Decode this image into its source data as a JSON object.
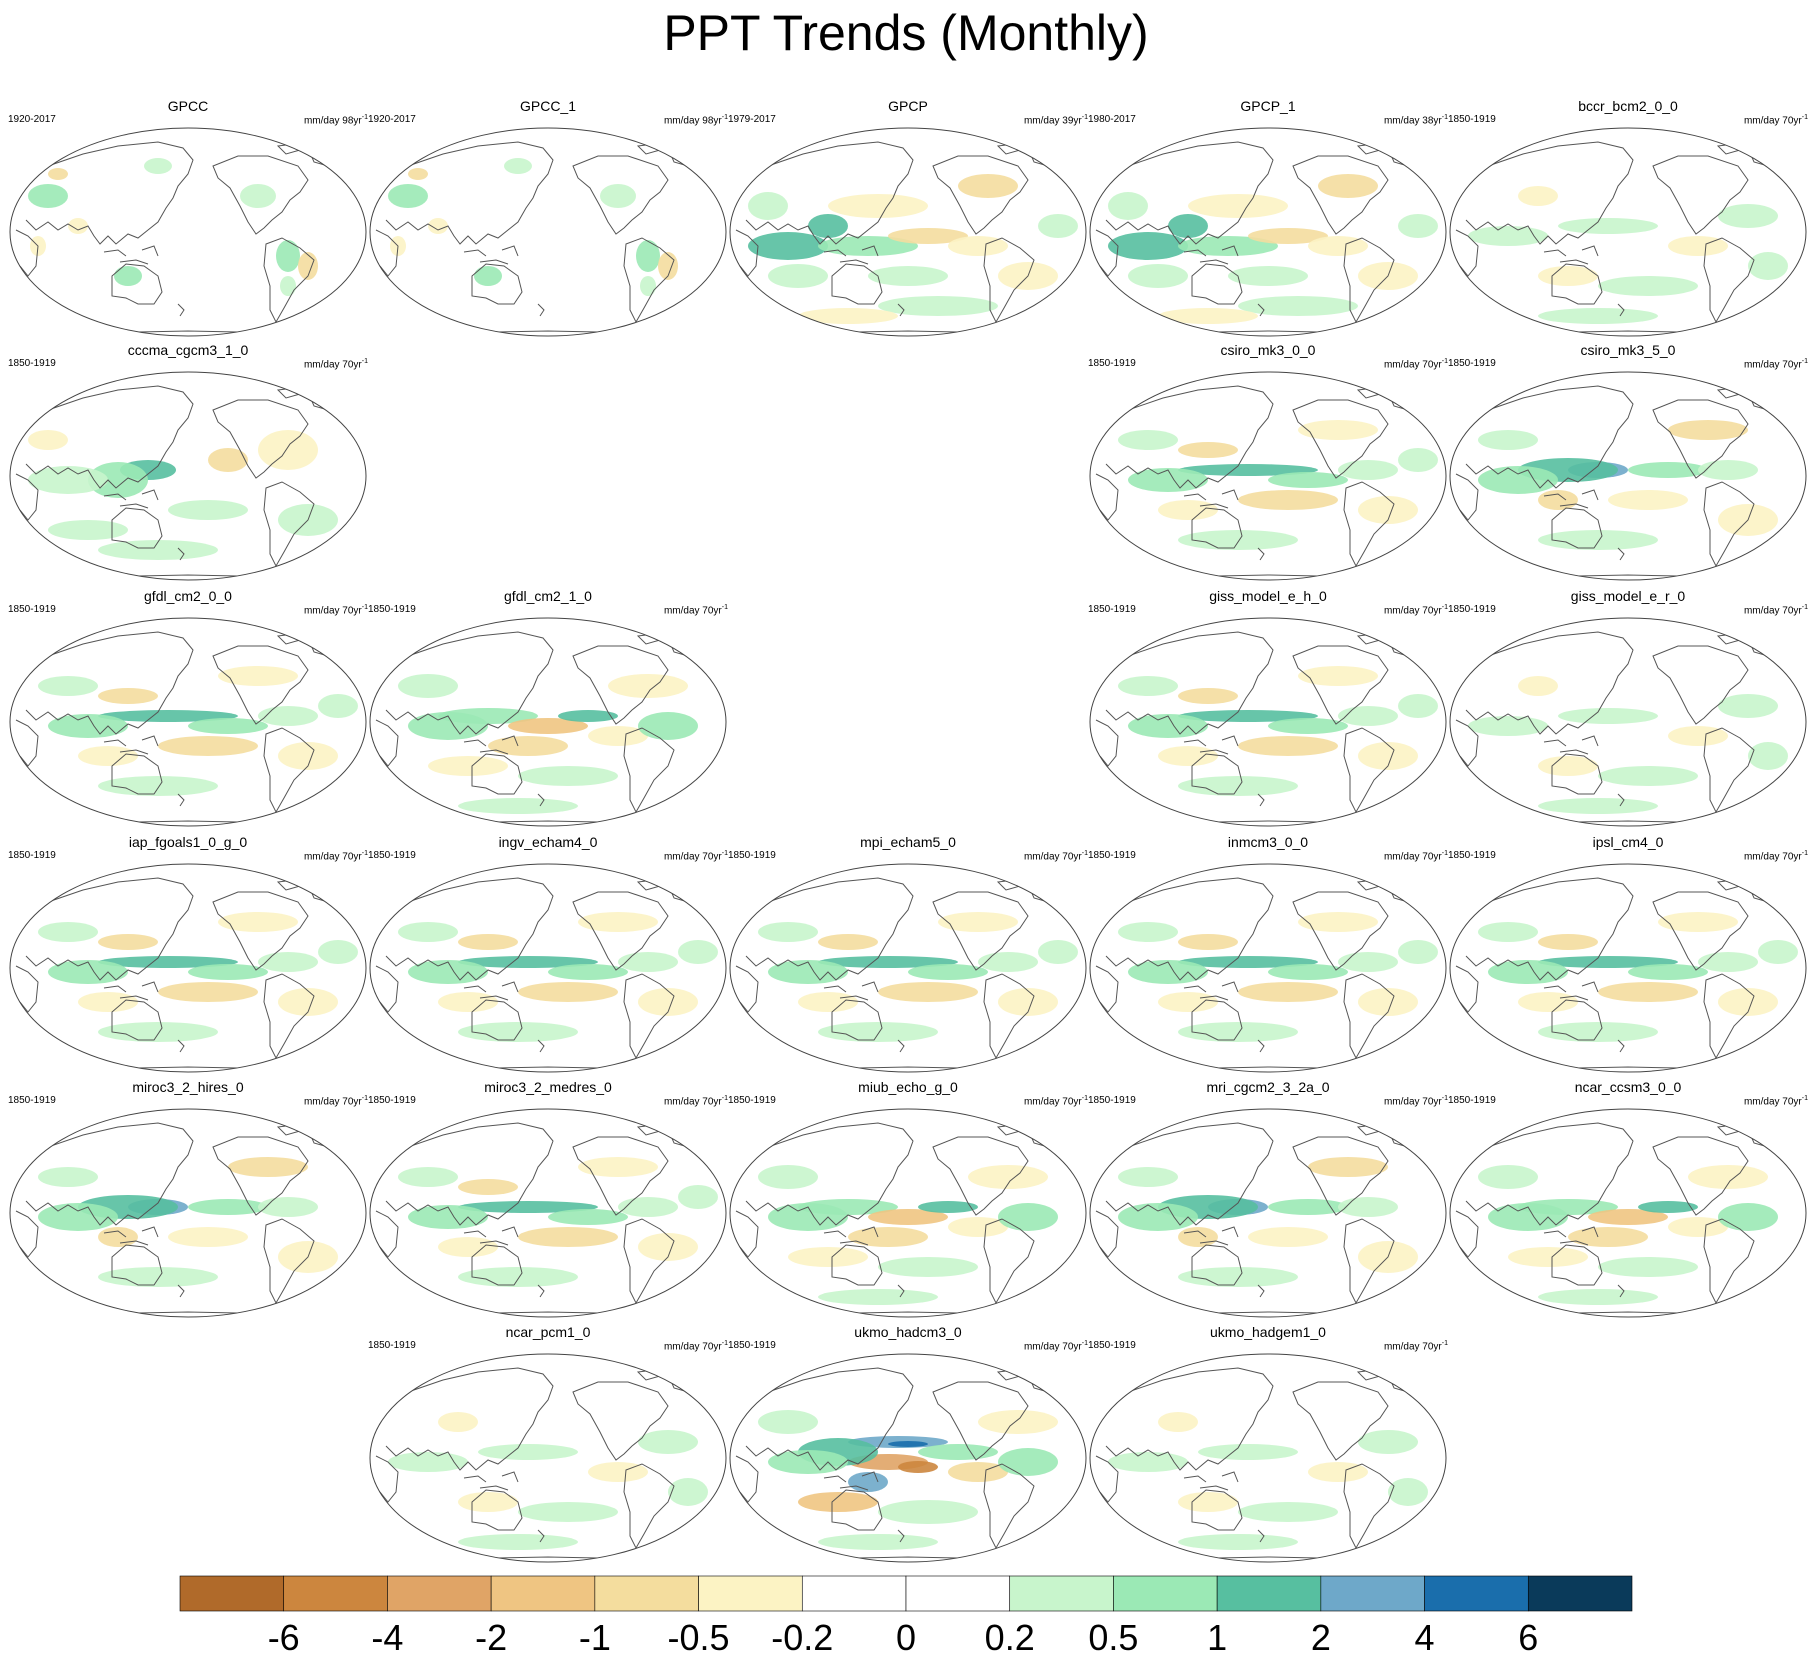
{
  "title": "PPT Trends (Monthly)",
  "colors": {
    "coastline": "#555555",
    "frame": "#444444",
    "land_bg": "#ffffff"
  },
  "chart_data": {
    "type": "heatmap",
    "title": "PPT Trends (Monthly)",
    "variable": "Precipitation trend (mm/day per period)",
    "projection": "Robinson, Pacific-centered",
    "colorbar": {
      "levels": [
        "-6",
        "-4",
        "-2",
        "-1",
        "-0.5",
        "-0.2",
        "0",
        "0.2",
        "0.5",
        "1",
        "2",
        "4",
        "6"
      ],
      "colors": [
        "#b06a2a",
        "#cc863e",
        "#e0a466",
        "#efc582",
        "#f4dd9e",
        "#fcf3c4",
        "#ffffff",
        "#ffffff",
        "#c8f5cc",
        "#9be9b5",
        "#57bfa0",
        "#6ea8c9",
        "#1a6eac",
        "#0a3a5a"
      ]
    },
    "panels": [
      {
        "name": "GPCC",
        "period": "1920-2017",
        "units": "mm/day 98yr",
        "exp": "-1",
        "pattern": "obs_land"
      },
      {
        "name": "GPCC_1",
        "period": "1920-2017",
        "units": "mm/day 98yr",
        "exp": "-1",
        "pattern": "obs_land"
      },
      {
        "name": "GPCP",
        "period": "1979-2017",
        "units": "mm/day 39yr",
        "exp": "-1",
        "pattern": "gpcp"
      },
      {
        "name": "GPCP_1",
        "period": "1980-2017",
        "units": "mm/day 38yr",
        "exp": "-1",
        "pattern": "gpcp"
      },
      {
        "name": "bccr_bcm2_0_0",
        "period": "1850-1919",
        "units": "mm/day 70yr",
        "exp": "-1",
        "pattern": "weak"
      },
      {
        "name": "cccma_cgcm3_1_0",
        "period": "1850-1919",
        "units": "mm/day 70yr",
        "exp": "-1",
        "pattern": "wpac"
      },
      {
        "name": "csiro_mk3_0_0",
        "period": "1850-1919",
        "units": "mm/day 70yr",
        "exp": "-1",
        "pattern": "itcz"
      },
      {
        "name": "csiro_mk3_5_0",
        "period": "1850-1919",
        "units": "mm/day 70yr",
        "exp": "-1",
        "pattern": "wpac_blue"
      },
      {
        "name": "gfdl_cm2_0_0",
        "period": "1850-1919",
        "units": "mm/day 70yr",
        "exp": "-1",
        "pattern": "itcz"
      },
      {
        "name": "gfdl_cm2_1_0",
        "period": "1850-1919",
        "units": "mm/day 70yr",
        "exp": "-1",
        "pattern": "mixed"
      },
      {
        "name": "giss_model_e_h_0",
        "period": "1850-1919",
        "units": "mm/day 70yr",
        "exp": "-1",
        "pattern": "itcz"
      },
      {
        "name": "giss_model_e_r_0",
        "period": "1850-1919",
        "units": "mm/day 70yr",
        "exp": "-1",
        "pattern": "weak"
      },
      {
        "name": "iap_fgoals1_0_g_0",
        "period": "1850-1919",
        "units": "mm/day 70yr",
        "exp": "-1",
        "pattern": "itcz"
      },
      {
        "name": "ingv_echam4_0",
        "period": "1850-1919",
        "units": "mm/day 70yr",
        "exp": "-1",
        "pattern": "itcz"
      },
      {
        "name": "mpi_echam5_0",
        "period": "1850-1919",
        "units": "mm/day 70yr",
        "exp": "-1",
        "pattern": "itcz"
      },
      {
        "name": "inmcm3_0_0",
        "period": "1850-1919",
        "units": "mm/day 70yr",
        "exp": "-1",
        "pattern": "itcz"
      },
      {
        "name": "ipsl_cm4_0",
        "period": "1850-1919",
        "units": "mm/day 70yr",
        "exp": "-1",
        "pattern": "itcz"
      },
      {
        "name": "miroc3_2_hires_0",
        "period": "1850-1919",
        "units": "mm/day 70yr",
        "exp": "-1",
        "pattern": "wpac_blue"
      },
      {
        "name": "miroc3_2_medres_0",
        "period": "1850-1919",
        "units": "mm/day 70yr",
        "exp": "-1",
        "pattern": "itcz"
      },
      {
        "name": "miub_echo_g_0",
        "period": "1850-1919",
        "units": "mm/day 70yr",
        "exp": "-1",
        "pattern": "mixed"
      },
      {
        "name": "mri_cgcm2_3_2a_0",
        "period": "1850-1919",
        "units": "mm/day 70yr",
        "exp": "-1",
        "pattern": "wpac_blue"
      },
      {
        "name": "ncar_ccsm3_0_0",
        "period": "1850-1919",
        "units": "mm/day 70yr",
        "exp": "-1",
        "pattern": "mixed"
      },
      {
        "name": "ncar_pcm1_0",
        "period": "1850-1919",
        "units": "mm/day 70yr",
        "exp": "-1",
        "pattern": "weak"
      },
      {
        "name": "ukmo_hadcm3_0",
        "period": "1850-1919",
        "units": "mm/day 70yr",
        "exp": "-1",
        "pattern": "strong"
      },
      {
        "name": "ukmo_hadgem1_0",
        "period": "1850-1919",
        "units": "mm/day 70yr",
        "exp": "-1",
        "pattern": "weak"
      }
    ]
  }
}
